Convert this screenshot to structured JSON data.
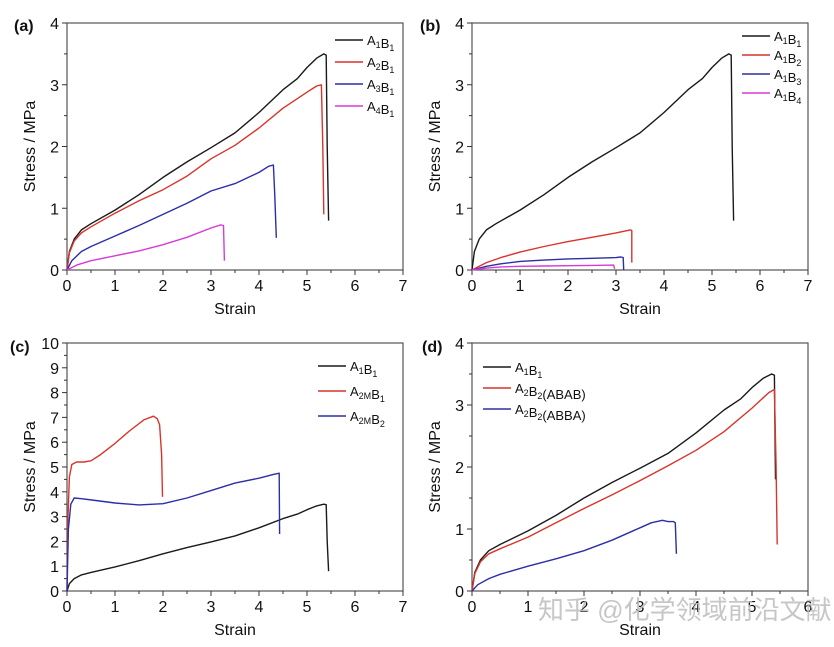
{
  "figure": {
    "watermark": "知乎 @化学领域前沿文献"
  },
  "chart_data": [
    {
      "id": "a",
      "panel_label": "(a)",
      "type": "line",
      "xlabel": "Strain",
      "ylabel": "Stress / MPa",
      "xlim": [
        0,
        7
      ],
      "ylim": [
        0,
        4
      ],
      "xticks": [
        0,
        1,
        2,
        3,
        4,
        5,
        6,
        7
      ],
      "yticks": [
        0,
        1,
        2,
        3,
        4
      ],
      "grid": false,
      "legend_position": "top-right",
      "series": [
        {
          "name": "A1B1",
          "label_parts": [
            [
              "A",
              ""
            ],
            [
              "1",
              "sub"
            ],
            [
              "B",
              ""
            ],
            [
              "1",
              "sub"
            ]
          ],
          "color": "#1a1a1a",
          "x": [
            0,
            0.05,
            0.15,
            0.3,
            0.5,
            1.0,
            1.5,
            2.0,
            2.5,
            3.0,
            3.5,
            4.0,
            4.5,
            4.8,
            5.0,
            5.2,
            5.35,
            5.4,
            5.42,
            5.45
          ],
          "y": [
            0,
            0.3,
            0.5,
            0.65,
            0.75,
            0.97,
            1.22,
            1.5,
            1.75,
            1.98,
            2.22,
            2.55,
            2.92,
            3.1,
            3.28,
            3.43,
            3.5,
            3.48,
            2.0,
            0.8
          ]
        },
        {
          "name": "A2B1",
          "label_parts": [
            [
              "A",
              ""
            ],
            [
              "2",
              "sub"
            ],
            [
              "B",
              ""
            ],
            [
              "1",
              "sub"
            ]
          ],
          "color": "#d9342b",
          "x": [
            0,
            0.05,
            0.15,
            0.3,
            0.5,
            1.0,
            1.5,
            2.0,
            2.5,
            3.0,
            3.5,
            4.0,
            4.5,
            5.0,
            5.2,
            5.3,
            5.33,
            5.35
          ],
          "y": [
            0,
            0.28,
            0.47,
            0.6,
            0.7,
            0.92,
            1.12,
            1.3,
            1.52,
            1.8,
            2.02,
            2.3,
            2.62,
            2.88,
            2.98,
            3.0,
            2.0,
            0.9
          ]
        },
        {
          "name": "A3B1",
          "label_parts": [
            [
              "A",
              ""
            ],
            [
              "3",
              "sub"
            ],
            [
              "B",
              ""
            ],
            [
              "1",
              "sub"
            ]
          ],
          "color": "#2b2fa6",
          "x": [
            0,
            0.1,
            0.3,
            0.5,
            1.0,
            1.5,
            2.0,
            2.5,
            3.0,
            3.5,
            4.0,
            4.2,
            4.3,
            4.33,
            4.36
          ],
          "y": [
            0,
            0.15,
            0.3,
            0.38,
            0.55,
            0.72,
            0.9,
            1.08,
            1.28,
            1.4,
            1.58,
            1.68,
            1.7,
            1.2,
            0.52
          ]
        },
        {
          "name": "A4B1",
          "label_parts": [
            [
              "A",
              ""
            ],
            [
              "4",
              "sub"
            ],
            [
              "B",
              ""
            ],
            [
              "1",
              "sub"
            ]
          ],
          "color": "#d63bd6",
          "x": [
            0,
            0.2,
            0.5,
            1.0,
            1.5,
            2.0,
            2.5,
            3.0,
            3.2,
            3.26,
            3.28
          ],
          "y": [
            0,
            0.08,
            0.15,
            0.23,
            0.31,
            0.41,
            0.53,
            0.68,
            0.73,
            0.72,
            0.15
          ]
        }
      ]
    },
    {
      "id": "b",
      "panel_label": "(b)",
      "type": "line",
      "xlabel": "Strain",
      "ylabel": "Stress / MPa",
      "xlim": [
        0,
        7
      ],
      "ylim": [
        0,
        4
      ],
      "xticks": [
        0,
        1,
        2,
        3,
        4,
        5,
        6,
        7
      ],
      "yticks": [
        0,
        1,
        2,
        3,
        4
      ],
      "grid": false,
      "legend_position": "top-right",
      "series": [
        {
          "name": "A1B1",
          "label_parts": [
            [
              "A",
              ""
            ],
            [
              "1",
              "sub"
            ],
            [
              "B",
              ""
            ],
            [
              "1",
              "sub"
            ]
          ],
          "color": "#1a1a1a",
          "x": [
            0,
            0.05,
            0.15,
            0.3,
            0.5,
            1.0,
            1.5,
            2.0,
            2.5,
            3.0,
            3.5,
            4.0,
            4.5,
            4.8,
            5.0,
            5.2,
            5.35,
            5.4,
            5.42,
            5.45
          ],
          "y": [
            0,
            0.3,
            0.5,
            0.65,
            0.75,
            0.97,
            1.22,
            1.5,
            1.75,
            1.98,
            2.22,
            2.55,
            2.92,
            3.1,
            3.28,
            3.43,
            3.5,
            3.48,
            2.0,
            0.8
          ]
        },
        {
          "name": "A1B2",
          "label_parts": [
            [
              "A",
              ""
            ],
            [
              "1",
              "sub"
            ],
            [
              "B",
              ""
            ],
            [
              "2",
              "sub"
            ]
          ],
          "color": "#d9342b",
          "x": [
            0,
            0.3,
            0.6,
            1.0,
            1.5,
            2.0,
            2.5,
            3.0,
            3.3,
            3.33,
            3.33
          ],
          "y": [
            0,
            0.12,
            0.2,
            0.29,
            0.38,
            0.46,
            0.53,
            0.6,
            0.65,
            0.64,
            0.12
          ]
        },
        {
          "name": "A1B3",
          "label_parts": [
            [
              "A",
              ""
            ],
            [
              "1",
              "sub"
            ],
            [
              "B",
              ""
            ],
            [
              "3",
              "sub"
            ]
          ],
          "color": "#2b2fa6",
          "x": [
            0,
            0.3,
            0.6,
            1.0,
            1.5,
            2.0,
            2.5,
            3.0,
            3.1,
            3.15,
            3.16
          ],
          "y": [
            0,
            0.06,
            0.1,
            0.14,
            0.16,
            0.18,
            0.19,
            0.2,
            0.21,
            0.2,
            0.0
          ]
        },
        {
          "name": "A1B4",
          "label_parts": [
            [
              "A",
              ""
            ],
            [
              "1",
              "sub"
            ],
            [
              "B",
              ""
            ],
            [
              "4",
              "sub"
            ]
          ],
          "color": "#d63bd6",
          "x": [
            0,
            0.3,
            0.6,
            1.0,
            1.5,
            2.0,
            2.5,
            2.95,
            2.97
          ],
          "y": [
            0,
            0.03,
            0.05,
            0.06,
            0.065,
            0.07,
            0.075,
            0.08,
            0.02
          ]
        }
      ]
    },
    {
      "id": "c",
      "panel_label": "(c)",
      "type": "line",
      "xlabel": "Strain",
      "ylabel": "Stress / MPa",
      "xlim": [
        0,
        7
      ],
      "ylim": [
        0,
        10
      ],
      "xticks": [
        0,
        1,
        2,
        3,
        4,
        5,
        6,
        7
      ],
      "yticks": [
        0,
        1,
        2,
        3,
        4,
        5,
        6,
        7,
        8,
        9,
        10
      ],
      "grid": false,
      "legend_position": "top-right",
      "series": [
        {
          "name": "A1B1",
          "label_parts": [
            [
              "A",
              ""
            ],
            [
              "1",
              "sub"
            ],
            [
              "B",
              ""
            ],
            [
              "1",
              "sub"
            ]
          ],
          "color": "#1a1a1a",
          "x": [
            0,
            0.05,
            0.15,
            0.3,
            0.5,
            1.0,
            1.5,
            2.0,
            2.5,
            3.0,
            3.5,
            4.0,
            4.5,
            4.8,
            5.0,
            5.2,
            5.35,
            5.4,
            5.42,
            5.45
          ],
          "y": [
            0,
            0.3,
            0.5,
            0.65,
            0.75,
            0.97,
            1.22,
            1.5,
            1.75,
            1.98,
            2.22,
            2.55,
            2.92,
            3.1,
            3.28,
            3.43,
            3.5,
            3.48,
            2.0,
            0.8
          ]
        },
        {
          "name": "A2MB1",
          "label_parts": [
            [
              "A",
              ""
            ],
            [
              "2M",
              "sub"
            ],
            [
              "B",
              ""
            ],
            [
              "1",
              "sub"
            ]
          ],
          "color": "#d9342b",
          "x": [
            0,
            0.02,
            0.05,
            0.1,
            0.2,
            0.35,
            0.5,
            0.7,
            1.0,
            1.3,
            1.6,
            1.8,
            1.88,
            1.93,
            1.97,
            1.99
          ],
          "y": [
            0,
            3.0,
            4.6,
            5.1,
            5.2,
            5.2,
            5.25,
            5.5,
            5.95,
            6.45,
            6.9,
            7.05,
            6.95,
            6.7,
            5.5,
            3.8
          ]
        },
        {
          "name": "A2MB2",
          "label_parts": [
            [
              "A",
              ""
            ],
            [
              "2M",
              "sub"
            ],
            [
              "B",
              ""
            ],
            [
              "2",
              "sub"
            ]
          ],
          "color": "#2b2fa6",
          "x": [
            0,
            0.03,
            0.08,
            0.15,
            0.3,
            0.6,
            1.0,
            1.5,
            2.0,
            2.5,
            3.0,
            3.5,
            4.0,
            4.3,
            4.42,
            4.43
          ],
          "y": [
            0,
            2.5,
            3.5,
            3.75,
            3.72,
            3.65,
            3.55,
            3.47,
            3.52,
            3.75,
            4.05,
            4.35,
            4.55,
            4.7,
            4.75,
            2.3
          ]
        }
      ]
    },
    {
      "id": "d",
      "panel_label": "(d)",
      "type": "line",
      "xlabel": "Strain",
      "ylabel": "Stress / MPa",
      "xlim": [
        0,
        6
      ],
      "ylim": [
        0,
        4
      ],
      "xticks": [
        0,
        1,
        2,
        3,
        4,
        5,
        6
      ],
      "yticks": [
        0,
        1,
        2,
        3,
        4
      ],
      "grid": false,
      "legend_position": "top-left",
      "series": [
        {
          "name": "A1B1",
          "label_parts": [
            [
              "A",
              ""
            ],
            [
              "1",
              "sub"
            ],
            [
              "B",
              ""
            ],
            [
              "1",
              "sub"
            ]
          ],
          "color": "#1a1a1a",
          "x": [
            0,
            0.05,
            0.15,
            0.3,
            0.5,
            1.0,
            1.5,
            2.0,
            2.5,
            3.0,
            3.5,
            4.0,
            4.5,
            4.8,
            5.0,
            5.2,
            5.35,
            5.4,
            5.42
          ],
          "y": [
            0,
            0.3,
            0.5,
            0.65,
            0.75,
            0.97,
            1.22,
            1.5,
            1.75,
            1.98,
            2.22,
            2.55,
            2.92,
            3.1,
            3.28,
            3.43,
            3.5,
            3.48,
            1.8
          ]
        },
        {
          "name": "A2B2(ABAB)",
          "label_parts": [
            [
              "A",
              ""
            ],
            [
              "2",
              "sub"
            ],
            [
              "B",
              ""
            ],
            [
              "2",
              "sub"
            ],
            [
              "(ABAB)",
              ""
            ]
          ],
          "color": "#d9342b",
          "x": [
            0,
            0.05,
            0.15,
            0.3,
            0.5,
            1.0,
            1.5,
            2.0,
            2.5,
            3.0,
            3.5,
            4.0,
            4.5,
            5.0,
            5.3,
            5.4,
            5.43,
            5.45
          ],
          "y": [
            0,
            0.28,
            0.47,
            0.6,
            0.68,
            0.87,
            1.1,
            1.33,
            1.55,
            1.78,
            2.02,
            2.27,
            2.57,
            2.95,
            3.2,
            3.25,
            2.0,
            0.75
          ]
        },
        {
          "name": "A2B2(ABBA)",
          "label_parts": [
            [
              "A",
              ""
            ],
            [
              "2",
              "sub"
            ],
            [
              "B",
              ""
            ],
            [
              "2",
              "sub"
            ],
            [
              "(ABBA)",
              ""
            ]
          ],
          "color": "#2b2fa6",
          "x": [
            0,
            0.1,
            0.3,
            0.5,
            1.0,
            1.5,
            2.0,
            2.5,
            3.0,
            3.2,
            3.4,
            3.5,
            3.6,
            3.63,
            3.65
          ],
          "y": [
            0,
            0.1,
            0.2,
            0.27,
            0.4,
            0.52,
            0.65,
            0.82,
            1.02,
            1.1,
            1.14,
            1.12,
            1.12,
            1.1,
            0.6
          ]
        }
      ]
    }
  ]
}
